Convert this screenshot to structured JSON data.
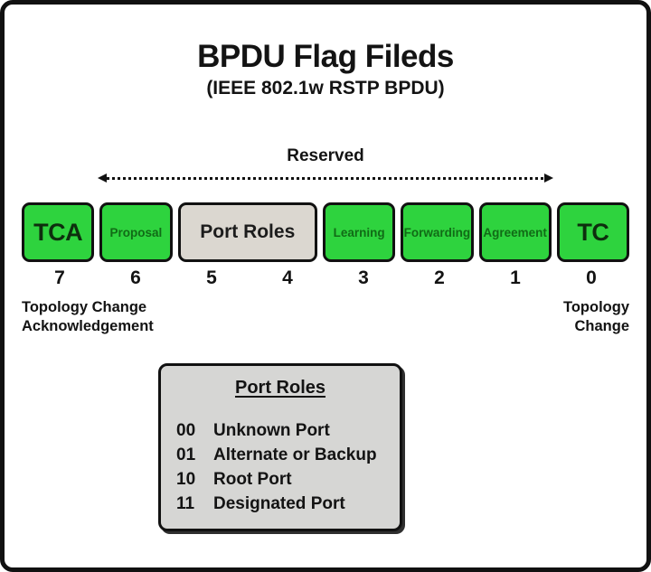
{
  "title": "BPDU Flag Fileds",
  "subtitle": "(IEEE 802.1w RSTP BPDU)",
  "reserved_label": "Reserved",
  "colors": {
    "green": "#2ed33e",
    "gray_box": "#dbd7d0",
    "legend_bg": "#d6d6d4",
    "ink": "#111111"
  },
  "fields": [
    {
      "label": "TCA",
      "bit": "7",
      "kind": "green",
      "style": "large",
      "span": 1
    },
    {
      "label": "Proposal",
      "bit": "6",
      "kind": "green",
      "style": "small",
      "span": 1
    },
    {
      "label": "Port Roles",
      "bit": "5-4",
      "kind": "gray",
      "style": "medium",
      "span": 2
    },
    {
      "label": "Learning",
      "bit": "3",
      "kind": "green",
      "style": "small",
      "span": 1
    },
    {
      "label": "Forwarding",
      "bit": "2",
      "kind": "green",
      "style": "small",
      "span": 1
    },
    {
      "label": "Agreement",
      "bit": "1",
      "kind": "green",
      "style": "small",
      "span": 1
    },
    {
      "label": "TC",
      "bit": "0",
      "kind": "green",
      "style": "large",
      "span": 1
    }
  ],
  "bit_numbers": [
    "7",
    "6",
    "5",
    "4",
    "3",
    "2",
    "1",
    "0"
  ],
  "captions": {
    "left_lines": [
      "Topology Change",
      "Acknowledgement"
    ],
    "right_lines": [
      "Topology",
      "Change"
    ]
  },
  "legend": {
    "title": "Port Roles",
    "entries": [
      {
        "code": "00",
        "label": "Unknown Port"
      },
      {
        "code": "01",
        "label": "Alternate or Backup"
      },
      {
        "code": "10",
        "label": "Root Port"
      },
      {
        "code": "11",
        "label": "Designated Port"
      }
    ]
  }
}
